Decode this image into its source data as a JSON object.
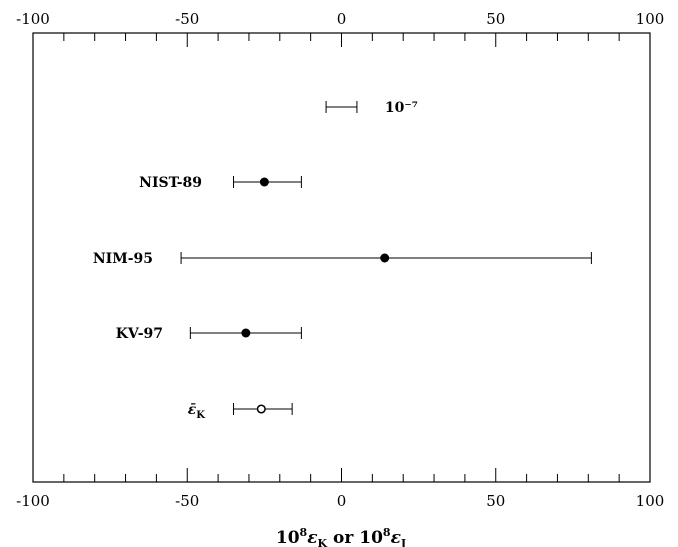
{
  "chart_data": {
    "type": "scatter",
    "title": "",
    "xlabel": "",
    "ylabel": "",
    "xlim": [
      -100,
      100
    ],
    "grid": false,
    "legend": "none",
    "x_ticks": [
      -100,
      -50,
      0,
      50,
      100
    ],
    "x_tick_labels": [
      "-100",
      "-50",
      "0",
      "50",
      "100"
    ],
    "x_minor_step": 10,
    "points": [
      {
        "label": "10⁻⁷",
        "center": 0,
        "low": -5,
        "high": 5,
        "marker": "none"
      },
      {
        "label": "NIST-89",
        "center": -25,
        "low": -35,
        "high": -13,
        "marker": "filled"
      },
      {
        "label": "NIM-95",
        "center": 14,
        "low": -52,
        "high": 81,
        "marker": "filled"
      },
      {
        "label": "KV-97",
        "center": -31,
        "low": -49,
        "high": -13,
        "marker": "filled"
      },
      {
        "label": "ε̄",
        "label_sub": "K",
        "center": -26,
        "low": -35,
        "high": -16,
        "marker": "open"
      }
    ],
    "axis_title": {
      "part1_base": "10",
      "part1_exp": "8",
      "part1_sym": "ε",
      "part1_sub": "K",
      "connector": " or ",
      "part2_base": "10",
      "part2_exp": "8",
      "part2_sym": "ε",
      "part2_sub": "J"
    }
  }
}
